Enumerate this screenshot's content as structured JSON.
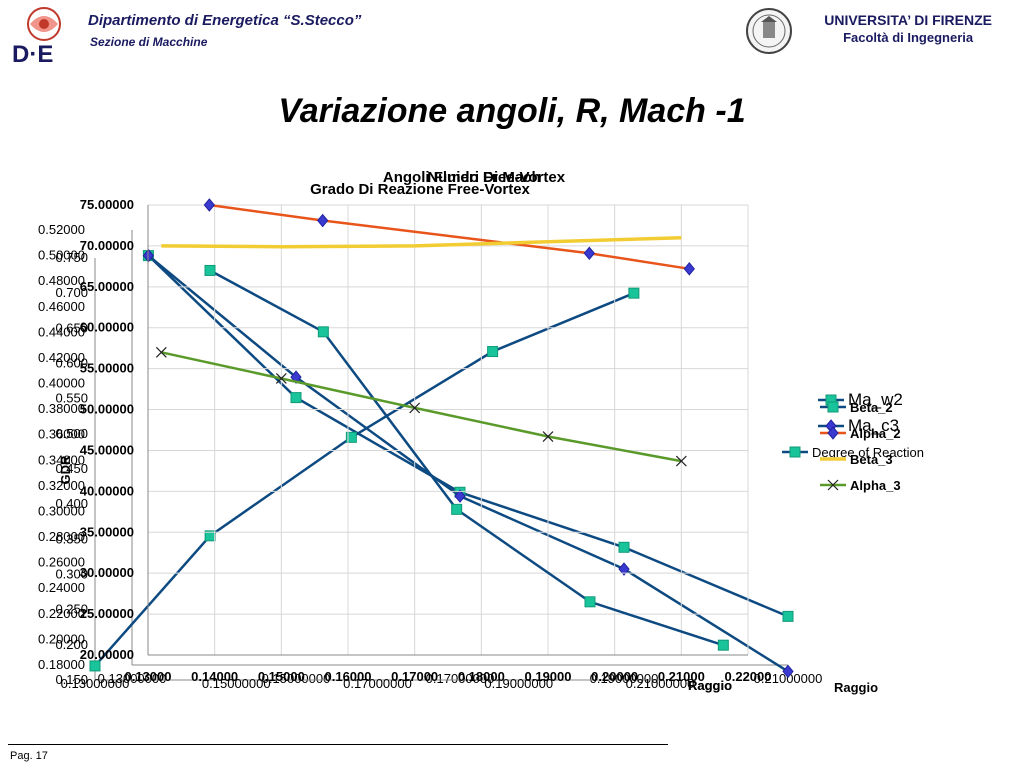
{
  "header": {
    "department": "Dipartimento di Energetica “S.Stecco”",
    "section": "Sezione di  Macchine",
    "university": "UNIVERSITA’ DI FIRENZE",
    "faculty": "Facoltà di Ingegneria",
    "logo_text": "D·E"
  },
  "slide": {
    "title": "Variazione angoli, R, Mach -1",
    "page": "Pag. 17"
  },
  "chart_data": [
    {
      "type": "line",
      "title": "Angoli Fluido Free-Vortex",
      "xlabel": "Raggio",
      "ylabel": "",
      "x": [
        0.13,
        0.14,
        0.15,
        0.16,
        0.17,
        0.18,
        0.19,
        0.2,
        0.21,
        0.22
      ],
      "xlim": [
        0.13,
        0.22
      ],
      "ylim": [
        20,
        75
      ],
      "x_ticks": [
        "0.13000",
        "0.14000",
        "0.15000",
        "0.16000",
        "0.17000",
        "0.18000",
        "0.19000",
        "0.20000",
        "0.21000",
        "0.22000"
      ],
      "y_ticks": [
        "20.00000",
        "25.00000",
        "30.00000",
        "35.00000",
        "40.00000",
        "45.00000",
        "50.00000",
        "55.00000",
        "60.00000",
        "65.00000",
        "70.00000",
        "75.00000"
      ],
      "series": [
        {
          "name": "Beta_2",
          "color": "#0d4a82",
          "marker": "square",
          "points": [
            [
              0.1393,
              67.0
            ],
            [
              0.1563,
              59.5
            ],
            [
              0.1763,
              37.8
            ],
            [
              0.1963,
              26.5
            ],
            [
              0.2163,
              21.2
            ]
          ]
        },
        {
          "name": "Alpha_2",
          "color": "#e8541a",
          "marker": "diamond",
          "points": [
            [
              0.1392,
              75.0
            ],
            [
              0.1562,
              73.1
            ],
            [
              0.1962,
              69.1
            ],
            [
              0.2112,
              67.2
            ]
          ]
        },
        {
          "name": "Beta_3",
          "color": "#f2cc33",
          "marker": "none",
          "points": [
            [
              0.132,
              70.0
            ],
            [
              0.15,
              69.9
            ],
            [
              0.17,
              70.0
            ],
            [
              0.19,
              70.5
            ],
            [
              0.21,
              71.0
            ]
          ]
        },
        {
          "name": "Alpha_3",
          "color": "#5a9a2a",
          "marker": "x",
          "points": [
            [
              0.132,
              57.0
            ],
            [
              0.15,
              53.8
            ],
            [
              0.17,
              50.2
            ],
            [
              0.19,
              46.7
            ],
            [
              0.21,
              43.7
            ]
          ]
        }
      ],
      "legend": "right"
    },
    {
      "type": "line",
      "title": "Grado Di Reazione Free-Vortex",
      "xlabel": "Raggio",
      "ylabel": "GDR",
      "x_ticks": [
        "0.13000000",
        "0.15000000",
        "0.17000000",
        "0.19000000",
        "0.21000000"
      ],
      "xlim": [
        0.13,
        0.21
      ],
      "ylim": [
        0.15,
        0.75
      ],
      "y_ticks": [
        "0.150",
        "0.200",
        "0.250",
        "0.300",
        "0.350",
        "0.400",
        "0.450",
        "0.500",
        "0.550",
        "0.600",
        "0.650",
        "0.700",
        "0.750"
      ],
      "series": [
        {
          "name": "Degree of Reaction",
          "color": "#0d4a82",
          "marker": "square",
          "points": [
            [
              0.13,
              0.17
            ],
            [
              0.1463,
              0.355
            ],
            [
              0.1663,
              0.495
            ],
            [
              0.1863,
              0.617
            ],
            [
              0.2063,
              0.7
            ]
          ]
        }
      ],
      "legend": "right"
    },
    {
      "type": "line",
      "title": "Numeri Di Mach",
      "xlabel": "Raggio",
      "ylabel": "",
      "x_ticks": [
        "0.13000000",
        "0.15000000",
        "0.17000000",
        "0.19000000",
        "0.21000000"
      ],
      "xlim": [
        0.13,
        0.21
      ],
      "ylim": [
        0.18,
        0.52
      ],
      "y_ticks": [
        "0.18000",
        "0.20000",
        "0.22000",
        "0.24000",
        "0.26000",
        "0.28000",
        "0.30000",
        "0.32000",
        "0.34000",
        "0.36000",
        "0.38000",
        "0.40000",
        "0.42000",
        "0.44000",
        "0.46000",
        "0.48000",
        "0.50000",
        "0.52000"
      ],
      "series": [
        {
          "name": "Ma_w2",
          "color": "#0d4a82",
          "marker": "square",
          "points": [
            [
              0.132,
              0.5
            ],
            [
              0.15,
              0.389
            ],
            [
              0.17,
              0.315
            ],
            [
              0.19,
              0.272
            ],
            [
              0.21,
              0.218
            ]
          ]
        },
        {
          "name": "Ma_c3",
          "color": "#0d4a82",
          "marker": "diamond",
          "points": [
            [
              0.132,
              0.5
            ],
            [
              0.15,
              0.405
            ],
            [
              0.17,
              0.312
            ],
            [
              0.19,
              0.255
            ],
            [
              0.21,
              0.175
            ]
          ]
        }
      ],
      "legend": "right"
    }
  ]
}
